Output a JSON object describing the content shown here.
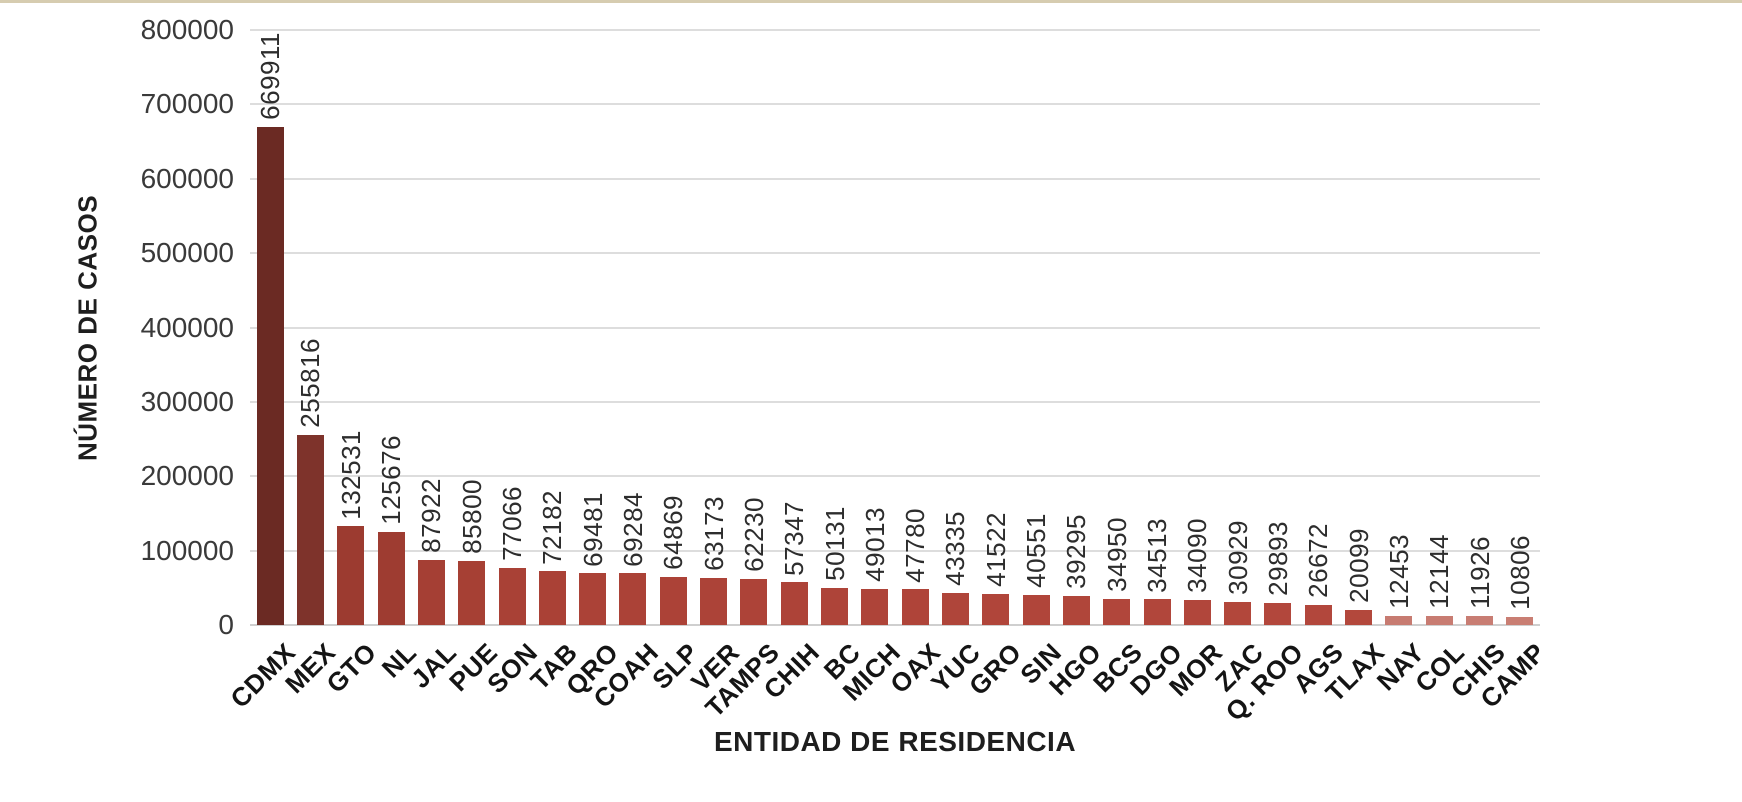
{
  "page": {
    "background_color": "#ffffff",
    "top_border_color": "#d6ccb0"
  },
  "chart_data": {
    "type": "bar",
    "title": "",
    "xlabel": "ENTIDAD DE RESIDENCIA",
    "ylabel": "NÚMERO DE CASOS",
    "ylim": [
      0,
      800000
    ],
    "y_tick_step": 100000,
    "y_ticks": [
      0,
      100000,
      200000,
      300000,
      400000,
      500000,
      600000,
      700000,
      800000
    ],
    "grid": true,
    "legend": "none",
    "value_labels": "vertical above bars",
    "x_tick_rotation": -45,
    "categories": [
      "CDMX",
      "MEX",
      "GTO",
      "NL",
      "JAL",
      "PUE",
      "SON",
      "TAB",
      "QRO",
      "COAH",
      "SLP",
      "VER",
      "TAMPS",
      "CHIH",
      "BC",
      "MICH",
      "OAX",
      "YUC",
      "GRO",
      "SIN",
      "HGO",
      "BCS",
      "DGO",
      "MOR",
      "ZAC",
      "Q. ROO",
      "AGS",
      "TLAX",
      "NAY",
      "COL",
      "CHIS",
      "CAMP"
    ],
    "values": [
      669911,
      255816,
      132531,
      125676,
      87922,
      85800,
      77066,
      72182,
      69481,
      69284,
      64869,
      63173,
      62230,
      57347,
      50131,
      49013,
      47780,
      43335,
      41522,
      40551,
      39295,
      34950,
      34513,
      34090,
      30929,
      29893,
      26672,
      20099,
      12453,
      12144,
      11926,
      10806
    ],
    "bar_colors": [
      "#6b2a23",
      "#7e332b",
      "#9c3b30",
      "#9e3c31",
      "#a53f34",
      "#a64034",
      "#a94136",
      "#aa4136",
      "#ab4237",
      "#ab4237",
      "#ac4237",
      "#ac4338",
      "#ad4338",
      "#ad4338",
      "#ae4439",
      "#ae4439",
      "#af4439",
      "#af453a",
      "#b0453a",
      "#b0453a",
      "#b0463a",
      "#b1463b",
      "#b1463b",
      "#b1463b",
      "#b2473b",
      "#b2473c",
      "#b2473c",
      "#b3483c",
      "#c77b71",
      "#c87c72",
      "#c87d73",
      "#c97e73"
    ]
  }
}
